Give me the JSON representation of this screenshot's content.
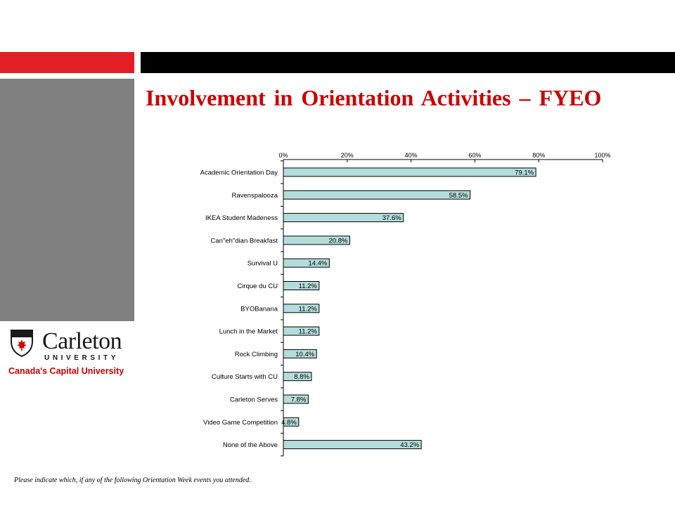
{
  "title": "Involvement in Orientation Activities – FYEO",
  "logo": {
    "name": "Carleton",
    "subtitle": "UNIVERSITY",
    "tagline": "Canada's Capital University"
  },
  "footnote": "Please indicate which, if any of the following Orientation Week events you attended.",
  "colors": {
    "accent_red": "#e41e26",
    "title_red": "#cc0000",
    "bar_fill": "#b4dcdc",
    "panel_gray": "#808080"
  },
  "chart_data": {
    "type": "bar",
    "orientation": "horizontal",
    "categories": [
      "Academic Orientation Day",
      "Ravenspalooza",
      "IKEA Student Madeness",
      "Can\"eh\"dian Breakfast",
      "Survival U",
      "Cirque du CU",
      "BYOBanana",
      "Lunch in the Market",
      "Rock Climbing",
      "Culture Starts with CU",
      "Carleton Serves",
      "Video Game Competition",
      "None of the Above"
    ],
    "values": [
      79.1,
      58.5,
      37.6,
      20.8,
      14.4,
      11.2,
      11.2,
      11.2,
      10.4,
      8.8,
      7.8,
      4.8,
      43.2
    ],
    "value_labels": [
      "79.1%",
      "58.5%",
      "37.6%",
      "20.8%",
      "14.4%",
      "11.2%",
      "11.2%",
      "11.2%",
      "10.4%",
      "8.8%",
      "7.8%",
      "4.8%",
      "43.2%"
    ],
    "xlim": [
      0,
      100
    ],
    "xticks": [
      "0%",
      "20%",
      "40%",
      "60%",
      "80%",
      "100%"
    ],
    "axis_position": "top",
    "grid": false,
    "legend": "none"
  }
}
